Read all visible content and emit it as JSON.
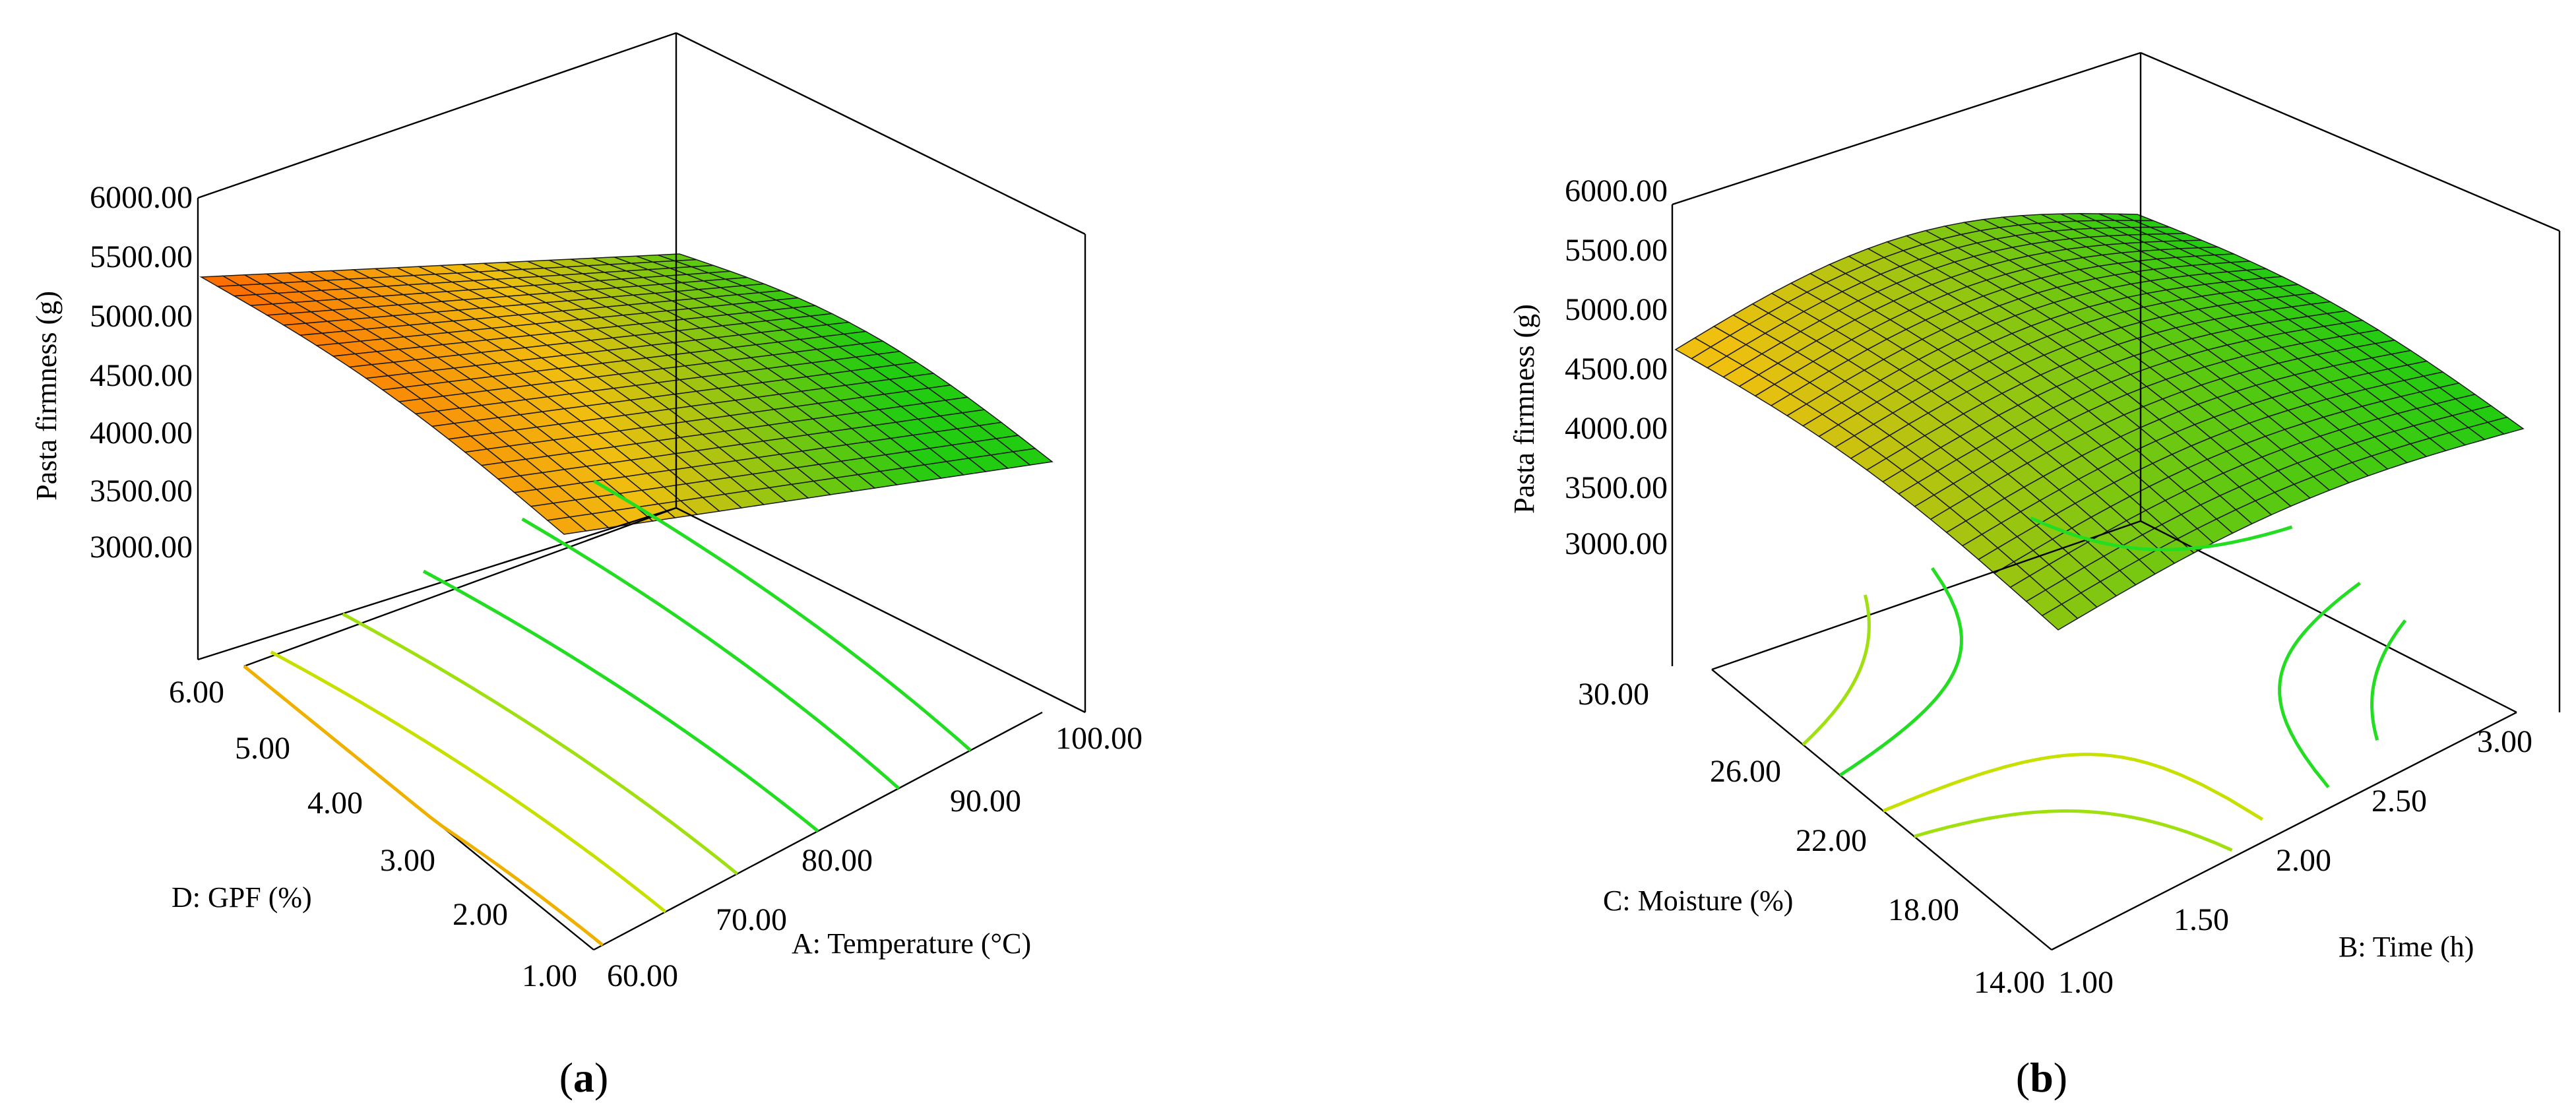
{
  "chart_data": [
    {
      "type": "surface",
      "panel_label": "a",
      "title": "",
      "zlabel": "Pasta firmness (g)",
      "xlabel": "A: Temperature (°C)",
      "ylabel": "D: GPF (%)",
      "x_ticks": [
        "60.00",
        "70.00",
        "80.00",
        "90.00",
        "100.00"
      ],
      "y_ticks": [
        "1.00",
        "2.00",
        "3.00",
        "4.00",
        "5.00",
        "6.00"
      ],
      "z_ticks": [
        "3000.00",
        "3500.00",
        "4000.00",
        "4500.00",
        "5000.00",
        "5500.00",
        "6000.00"
      ],
      "xlim": [
        60,
        100
      ],
      "ylim": [
        1,
        6
      ],
      "zlim": [
        3000,
        6000
      ],
      "surface_corners": {
        "x60_y1": 3000,
        "x100_y1": 3550,
        "x60_y6": 5050,
        "x100_y6": 5000
      },
      "color_scale": [
        "#22cc11",
        "#f0c010",
        "#ff6a00"
      ],
      "contour_colors": [
        "#f0b000",
        "#c8e000",
        "#a0e010",
        "#22dd22",
        "#22dd22",
        "#22dd22"
      ]
    },
    {
      "type": "surface",
      "panel_label": "b",
      "title": "",
      "zlabel": "Pasta firmness (g)",
      "xlabel": "B: Time (h)",
      "ylabel": "C: Moisture (%)",
      "x_ticks": [
        "1.00",
        "1.50",
        "2.00",
        "2.50",
        "3.00"
      ],
      "y_ticks": [
        "14.00",
        "18.00",
        "22.00",
        "26.00",
        "30.00"
      ],
      "z_ticks": [
        "3000.00",
        "3500.00",
        "4000.00",
        "4500.00",
        "5000.00",
        "5500.00",
        "6000.00"
      ],
      "xlim": [
        1,
        3
      ],
      "ylim": [
        14,
        30
      ],
      "zlim": [
        3000,
        6000
      ],
      "surface_corners": {
        "x1_y14": 3000,
        "x3_y14": 3700,
        "x1_y30": 4600,
        "x3_y30": 5000
      },
      "color_scale": [
        "#22cc11",
        "#f0c010",
        "#ff6a00"
      ],
      "contour_colors": [
        "#c8e000",
        "#a0e010",
        "#22dd22",
        "#22dd22"
      ]
    }
  ]
}
